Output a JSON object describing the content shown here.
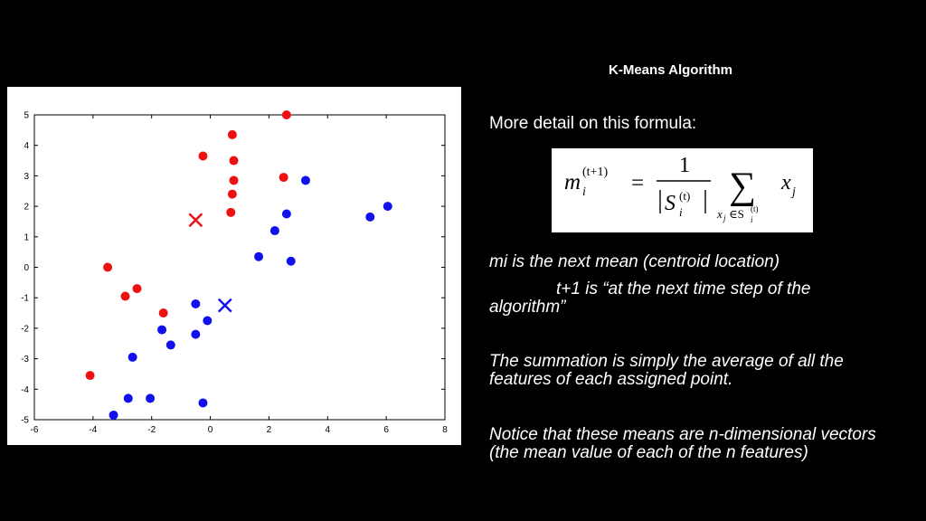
{
  "slide": {
    "title": "K-Means Algorithm",
    "formula_intro": "More detail on this formula:",
    "formula": {
      "lhs_base": "m",
      "lhs_sub": "i",
      "lhs_sup": "(t+1)",
      "equals": "=",
      "numerator": "1",
      "denominator_base": "S",
      "denominator_sub": "i",
      "denominator_sup": "(t)",
      "sum_symbol": "∑",
      "sum_under": "x",
      "sum_under_sub": "j",
      "sum_under_in": "∈S",
      "sum_under_in_sub": "i",
      "sum_under_in_sup": "(t)",
      "term_base": "x",
      "term_sub": "j"
    },
    "paragraphs": {
      "p1": "mi is the next mean (centroid location)",
      "p2": "t+1 is “at the next time step of the algorithm”",
      "p3": "The summation is simply the average of all the features of each assigned point.",
      "p4": "Notice that these means are n-dimensional vectors (the mean value of each  of the n features)"
    }
  },
  "chart_data": {
    "type": "scatter",
    "title": "",
    "xlabel": "",
    "ylabel": "",
    "xlim": [
      -6,
      8
    ],
    "ylim": [
      -5,
      5
    ],
    "xticks": [
      "-6",
      "-4",
      "-2",
      "0",
      "2",
      "4",
      "6",
      "8"
    ],
    "yticks": [
      "5",
      "4",
      "3",
      "2",
      "1",
      "0",
      "-1",
      "-2",
      "-3",
      "-4",
      "-5"
    ],
    "grid": false,
    "series": [
      {
        "color": "#ee1111",
        "marker": "dot",
        "points": [
          [
            2.6,
            5.0
          ],
          [
            0.75,
            4.35
          ],
          [
            -0.25,
            3.65
          ],
          [
            0.8,
            3.5
          ],
          [
            2.5,
            2.95
          ],
          [
            0.8,
            2.85
          ],
          [
            0.75,
            2.4
          ],
          [
            0.7,
            1.8
          ],
          [
            -3.5,
            0.0
          ],
          [
            -2.5,
            -0.7
          ],
          [
            -2.9,
            -0.95
          ],
          [
            -1.6,
            -1.5
          ],
          [
            -4.1,
            -3.55
          ]
        ]
      },
      {
        "color": "#1111ee",
        "marker": "dot",
        "points": [
          [
            3.25,
            2.85
          ],
          [
            6.05,
            2.0
          ],
          [
            2.6,
            1.75
          ],
          [
            5.45,
            1.65
          ],
          [
            2.2,
            1.2
          ],
          [
            1.65,
            0.35
          ],
          [
            2.75,
            0.2
          ],
          [
            -0.5,
            -1.2
          ],
          [
            -0.1,
            -1.75
          ],
          [
            -1.65,
            -2.05
          ],
          [
            -0.5,
            -2.2
          ],
          [
            -1.35,
            -2.55
          ],
          [
            -2.65,
            -2.95
          ],
          [
            -2.8,
            -4.3
          ],
          [
            -2.05,
            -4.3
          ],
          [
            -0.25,
            -4.45
          ],
          [
            -3.3,
            -4.85
          ]
        ]
      },
      {
        "color": "#ee1111",
        "marker": "x",
        "points": [
          [
            -0.5,
            1.55
          ]
        ]
      },
      {
        "color": "#1111ee",
        "marker": "x",
        "points": [
          [
            0.5,
            -1.25
          ]
        ]
      }
    ]
  }
}
